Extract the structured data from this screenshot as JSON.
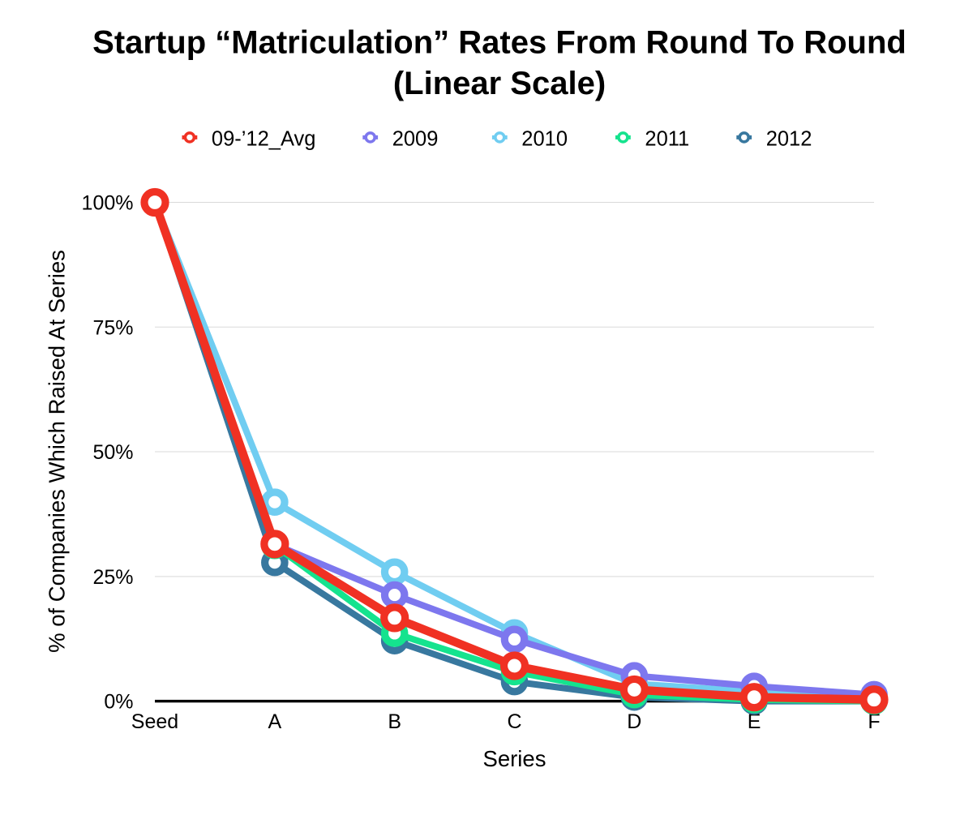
{
  "chart_data": {
    "type": "line",
    "title": "Startup “Matriculation” Rates From Round To Round",
    "subtitle": "(Linear Scale)",
    "xlabel": "Series",
    "ylabel": "% of Companies Which Raised At Series",
    "categories": [
      "Seed",
      "A",
      "B",
      "C",
      "D",
      "E",
      "F"
    ],
    "y_ticks": [
      0,
      25,
      50,
      75,
      100
    ],
    "y_tick_labels": [
      "0%",
      "25%",
      "50%",
      "75%",
      "100%"
    ],
    "ylim": [
      0,
      100
    ],
    "grid": "horizontal-gridlines",
    "legend_position": "top",
    "axis_color": "#000000",
    "gridline_color": "#d9d9d9",
    "background_color": "#ffffff",
    "series": [
      {
        "name": "09-’12_Avg",
        "color": "#f03123",
        "emphasis": true,
        "values": [
          100,
          31.5,
          16.7,
          7.1,
          2.3,
          0.8,
          0.3
        ]
      },
      {
        "name": "2009",
        "color": "#7d77ee",
        "emphasis": false,
        "values": [
          100,
          31.4,
          21.3,
          12.4,
          5.1,
          3.0,
          1.3
        ]
      },
      {
        "name": "2010",
        "color": "#70cdf1",
        "emphasis": false,
        "values": [
          100,
          39.9,
          25.9,
          13.7,
          3.5,
          1.9,
          1.3
        ]
      },
      {
        "name": "2011",
        "color": "#15e38e",
        "emphasis": false,
        "values": [
          100,
          31.2,
          13.6,
          5.9,
          1.3,
          0.3,
          0.0
        ]
      },
      {
        "name": "2012",
        "color": "#38789f",
        "emphasis": false,
        "values": [
          100,
          27.8,
          12.1,
          3.9,
          0.8,
          0.0,
          0.0
        ]
      }
    ]
  }
}
